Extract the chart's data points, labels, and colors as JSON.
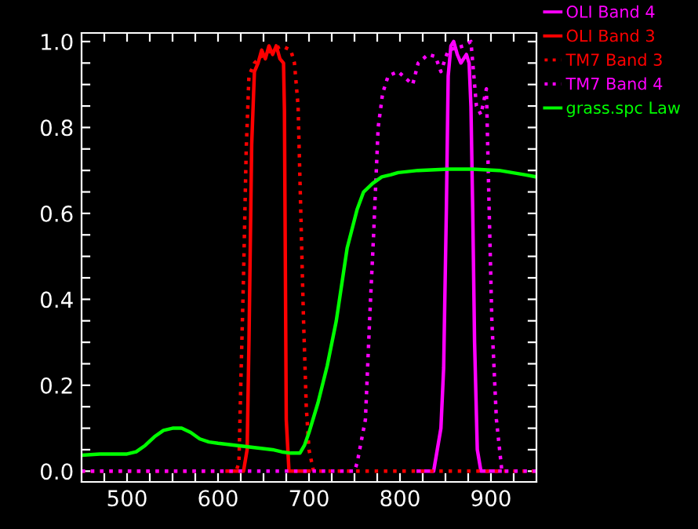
{
  "chart_data": {
    "type": "line",
    "legend": "right",
    "grid": false,
    "xlim": [
      450,
      950
    ],
    "ylim": [
      -0.025,
      1.02
    ],
    "xticks": [
      {
        "value": 475,
        "label": null
      },
      500,
      {
        "value": 525,
        "label": null
      },
      {
        "value": 550,
        "label": null
      },
      {
        "value": 575,
        "label": null
      },
      600,
      {
        "value": 625,
        "label": null
      },
      {
        "value": 650,
        "label": null
      },
      {
        "value": 675,
        "label": null
      },
      700,
      {
        "value": 725,
        "label": null
      },
      {
        "value": 750,
        "label": null
      },
      {
        "value": 775,
        "label": null
      },
      800,
      {
        "value": 825,
        "label": null
      },
      {
        "value": 850,
        "label": null
      },
      {
        "value": 875,
        "label": null
      },
      900,
      {
        "value": 925,
        "label": null
      }
    ],
    "yticks": [
      {
        "value": 0,
        "label": "0.0"
      },
      {
        "value": 0.05,
        "label": null
      },
      {
        "value": 0.1,
        "label": null
      },
      {
        "value": 0.15,
        "label": null
      },
      0.2,
      {
        "value": 0.25,
        "label": null
      },
      {
        "value": 0.3,
        "label": null
      },
      {
        "value": 0.35,
        "label": null
      },
      0.4,
      {
        "value": 0.45,
        "label": null
      },
      {
        "value": 0.5,
        "label": null
      },
      {
        "value": 0.55,
        "label": null
      },
      0.6,
      {
        "value": 0.65,
        "label": null
      },
      {
        "value": 0.7,
        "label": null
      },
      {
        "value": 0.75,
        "label": null
      },
      0.8,
      {
        "value": 0.85,
        "label": null
      },
      {
        "value": 0.9,
        "label": null
      },
      {
        "value": 0.95,
        "label": null
      },
      {
        "value": 1.0,
        "label": "1.0"
      }
    ],
    "series": [
      {
        "name": "OLI Band 4",
        "color": "#ff00ff",
        "line_style": "solid",
        "x": [
          820,
          837,
          845,
          848,
          851,
          853,
          856,
          859,
          863,
          867,
          873,
          876,
          878,
          880,
          882,
          885,
          889,
          910
        ],
        "values": [
          0,
          0,
          0.1,
          0.24,
          0.61,
          0.92,
          0.99,
          1.0,
          0.97,
          0.95,
          0.97,
          0.95,
          0.85,
          0.6,
          0.3,
          0.05,
          0,
          0
        ]
      },
      {
        "name": "OLI Band 3",
        "color": "#ff0000",
        "line_style": "solid",
        "x": [
          610,
          628,
          632,
          634,
          637,
          640,
          644,
          648,
          652,
          656,
          660,
          664,
          668,
          672,
          673,
          675,
          678,
          700
        ],
        "values": [
          0,
          0,
          0.05,
          0.3,
          0.76,
          0.93,
          0.95,
          0.98,
          0.96,
          0.99,
          0.97,
          0.99,
          0.96,
          0.95,
          0.84,
          0.12,
          0,
          0
        ]
      },
      {
        "name": "TM7 Band 3",
        "color": "#ff0000",
        "line_style": "dotted",
        "x": [
          450,
          620,
          623,
          625,
          628,
          631,
          634,
          640,
          650,
          660,
          670,
          680,
          684,
          688,
          691,
          694,
          697,
          700,
          705,
          950
        ],
        "values": [
          0,
          0,
          0.02,
          0.2,
          0.45,
          0.75,
          0.92,
          0.95,
          0.97,
          0.98,
          0.99,
          0.98,
          0.95,
          0.85,
          0.6,
          0.35,
          0.15,
          0.05,
          0,
          0
        ]
      },
      {
        "name": "TM7 Band 4",
        "color": "#ff00ff",
        "line_style": "dotted",
        "x": [
          450,
          750,
          753,
          762,
          767,
          771,
          776,
          781,
          787,
          798,
          814,
          820,
          831,
          839,
          845,
          853,
          870,
          878,
          884,
          889,
          895,
          898,
          901,
          906,
          912,
          950
        ],
        "values": [
          0,
          0,
          0.02,
          0.12,
          0.37,
          0.55,
          0.8,
          0.88,
          0.92,
          0.93,
          0.9,
          0.95,
          0.97,
          0.965,
          0.93,
          0.98,
          0.99,
          1.0,
          0.85,
          0.83,
          0.89,
          0.61,
          0.35,
          0.12,
          0,
          0
        ]
      },
      {
        "name": "grass.spc Law",
        "color": "#00ff00",
        "line_style": "solid",
        "x": [
          450,
          470,
          490,
          500,
          510,
          520,
          530,
          540,
          550,
          560,
          570,
          580,
          590,
          600,
          620,
          640,
          660,
          670,
          680,
          690,
          695,
          700,
          710,
          720,
          730,
          742,
          753,
          760,
          770,
          780,
          790,
          798,
          820,
          853,
          880,
          909,
          937,
          950
        ],
        "values": [
          0.037,
          0.04,
          0.04,
          0.04,
          0.045,
          0.06,
          0.08,
          0.095,
          0.1,
          0.1,
          0.09,
          0.075,
          0.068,
          0.065,
          0.06,
          0.055,
          0.05,
          0.045,
          0.042,
          0.042,
          0.06,
          0.09,
          0.16,
          0.245,
          0.35,
          0.52,
          0.61,
          0.65,
          0.67,
          0.685,
          0.69,
          0.695,
          0.7,
          0.703,
          0.703,
          0.7,
          0.69,
          0.685
        ]
      }
    ]
  }
}
